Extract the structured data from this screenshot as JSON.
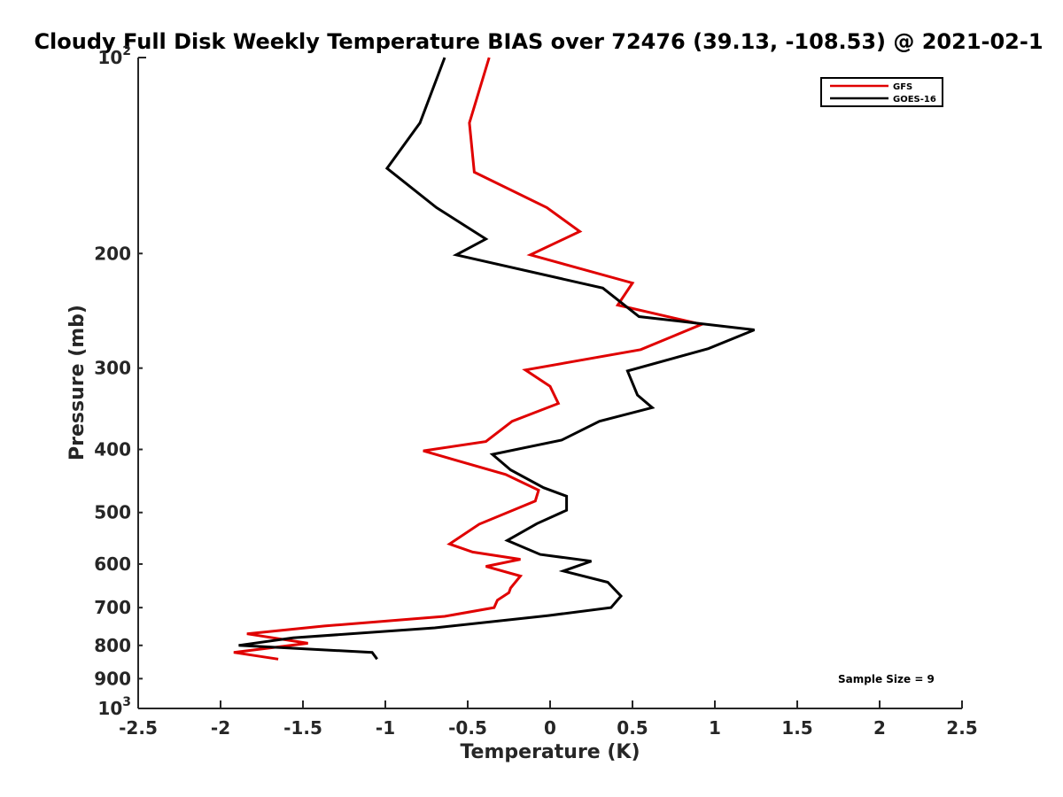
{
  "chart_data": {
    "type": "line",
    "title": "Cloudy Full Disk Weekly Temperature BIAS over 72476 (39.13, -108.53) @ 2021-02-1",
    "xlabel": "Temperature (K)",
    "ylabel": "Pressure (mb)",
    "xlim": [
      -2.5,
      2.5
    ],
    "ylim": [
      100,
      1000
    ],
    "y_scale": "log",
    "y_reversed": true,
    "xticks": [
      "-2.5",
      "-2",
      "-1.5",
      "-1",
      "-0.5",
      "0",
      "0.5",
      "1",
      "1.5",
      "2",
      "2.5"
    ],
    "xtick_values": [
      -2.5,
      -2,
      -1.5,
      -1,
      -0.5,
      0,
      0.5,
      1,
      1.5,
      2,
      2.5
    ],
    "yticks": [
      {
        "value": 100,
        "base": "10",
        "exp": "2"
      },
      {
        "value": 200,
        "label": "200"
      },
      {
        "value": 300,
        "label": "300"
      },
      {
        "value": 400,
        "label": "400"
      },
      {
        "value": 500,
        "label": "500"
      },
      {
        "value": 600,
        "label": "600"
      },
      {
        "value": 700,
        "label": "700"
      },
      {
        "value": 800,
        "label": "800"
      },
      {
        "value": 900,
        "label": "900"
      },
      {
        "value": 1000,
        "base": "10",
        "exp": "3"
      }
    ],
    "legend_position": "top-right",
    "annotation": "Sample Size = 9",
    "series": [
      {
        "name": "GFS",
        "color": "#e00000",
        "points": [
          [
            -0.37,
            100
          ],
          [
            -0.49,
            126
          ],
          [
            -0.46,
            150
          ],
          [
            -0.02,
            170
          ],
          [
            0.18,
            185
          ],
          [
            -0.12,
            201
          ],
          [
            0.5,
            222
          ],
          [
            0.41,
            240
          ],
          [
            0.92,
            257
          ],
          [
            0.55,
            281
          ],
          [
            -0.15,
            302
          ],
          [
            0.0,
            320
          ],
          [
            0.05,
            340
          ],
          [
            -0.23,
            362
          ],
          [
            -0.39,
            389
          ],
          [
            -0.77,
            402
          ],
          [
            -0.27,
            437
          ],
          [
            -0.07,
            462
          ],
          [
            -0.09,
            480
          ],
          [
            -0.43,
            521
          ],
          [
            -0.61,
            559
          ],
          [
            -0.47,
            575
          ],
          [
            -0.18,
            590
          ],
          [
            -0.39,
            605
          ],
          [
            -0.18,
            626
          ],
          [
            -0.24,
            653
          ],
          [
            -0.25,
            664
          ],
          [
            -0.32,
            682
          ],
          [
            -0.34,
            700
          ],
          [
            -0.64,
            722
          ],
          [
            -1.37,
            747
          ],
          [
            -1.84,
            768
          ],
          [
            -1.47,
            794
          ],
          [
            -1.92,
            820
          ],
          [
            -1.65,
            840
          ]
        ]
      },
      {
        "name": "GOES-16",
        "color": "#000000",
        "points": [
          [
            -0.64,
            100
          ],
          [
            -0.79,
            126
          ],
          [
            -0.99,
            148
          ],
          [
            -0.69,
            170
          ],
          [
            -0.39,
            190
          ],
          [
            -0.57,
            201
          ],
          [
            0.32,
            226
          ],
          [
            0.54,
            250
          ],
          [
            1.24,
            262
          ],
          [
            0.96,
            280
          ],
          [
            0.47,
            303
          ],
          [
            0.53,
            330
          ],
          [
            0.62,
            345
          ],
          [
            0.3,
            362
          ],
          [
            0.07,
            387
          ],
          [
            -0.35,
            407
          ],
          [
            -0.24,
            430
          ],
          [
            -0.04,
            458
          ],
          [
            0.1,
            472
          ],
          [
            0.1,
            496
          ],
          [
            -0.08,
            520
          ],
          [
            -0.26,
            552
          ],
          [
            -0.06,
            580
          ],
          [
            0.25,
            594
          ],
          [
            0.08,
            615
          ],
          [
            0.35,
            640
          ],
          [
            0.43,
            672
          ],
          [
            0.37,
            700
          ],
          [
            -0.01,
            720
          ],
          [
            -0.7,
            752
          ],
          [
            -1.56,
            779
          ],
          [
            -1.89,
            800
          ],
          [
            -1.08,
            820
          ],
          [
            -1.05,
            840
          ]
        ]
      }
    ]
  }
}
